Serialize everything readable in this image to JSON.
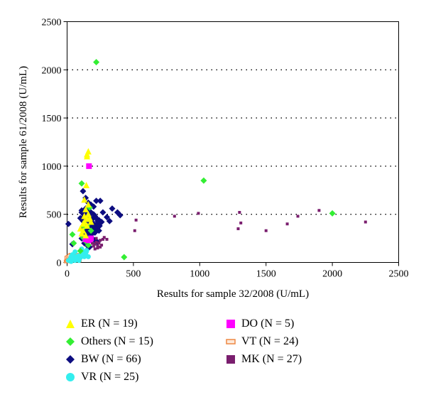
{
  "chart_data": {
    "type": "scatter",
    "title": "",
    "xlabel": "Results for sample 32/2008 (U/mL)",
    "ylabel": "Results for sample 61/2008 (U/mL)",
    "xlim": [
      0,
      2500
    ],
    "ylim": [
      0,
      2500
    ],
    "x_ticks": [
      "0",
      "500",
      "1000",
      "1500",
      "2000",
      "2500"
    ],
    "y_ticks": [
      "0",
      "500",
      "1000",
      "1500",
      "2000",
      "2500"
    ],
    "gridlines": "horizontal dotted",
    "legend_position": "bottom",
    "series": [
      {
        "name": "ER",
        "legend_label": "ER (N = 19)",
        "color": "#ffff00",
        "marker": "triangle",
        "points": [
          [
            150,
            1100
          ],
          [
            160,
            1150
          ],
          [
            150,
            1120
          ],
          [
            145,
            800
          ],
          [
            130,
            650
          ],
          [
            120,
            400
          ],
          [
            140,
            550
          ],
          [
            150,
            450
          ],
          [
            110,
            300
          ],
          [
            160,
            600
          ],
          [
            130,
            420
          ],
          [
            150,
            380
          ],
          [
            120,
            330
          ],
          [
            140,
            280
          ],
          [
            160,
            500
          ],
          [
            170,
            460
          ],
          [
            180,
            420
          ],
          [
            100,
            350
          ],
          [
            130,
            480
          ]
        ]
      },
      {
        "name": "Others",
        "legend_label": "Others (N = 15)",
        "color": "#33ee33",
        "marker": "diamond",
        "points": [
          [
            220,
            2080
          ],
          [
            1030,
            850
          ],
          [
            2000,
            510
          ],
          [
            430,
            55
          ],
          [
            110,
            820
          ],
          [
            170,
            570
          ],
          [
            150,
            380
          ],
          [
            130,
            370
          ],
          [
            40,
            290
          ],
          [
            50,
            200
          ],
          [
            140,
            220
          ],
          [
            120,
            260
          ],
          [
            160,
            180
          ],
          [
            100,
            120
          ],
          [
            180,
            330
          ]
        ]
      },
      {
        "name": "BW",
        "legend_label": "BW (N = 66)",
        "color": "#0d0d80",
        "marker": "diamond",
        "points": [
          [
            10,
            400
          ],
          [
            40,
            190
          ],
          [
            120,
            740
          ],
          [
            140,
            670
          ],
          [
            160,
            620
          ],
          [
            180,
            600
          ],
          [
            200,
            580
          ],
          [
            220,
            640
          ],
          [
            250,
            640
          ],
          [
            270,
            520
          ],
          [
            300,
            470
          ],
          [
            320,
            430
          ],
          [
            340,
            560
          ],
          [
            380,
            520
          ],
          [
            400,
            490
          ],
          [
            110,
            520
          ],
          [
            130,
            490
          ],
          [
            150,
            510
          ],
          [
            170,
            470
          ],
          [
            190,
            450
          ],
          [
            210,
            480
          ],
          [
            230,
            430
          ],
          [
            250,
            410
          ],
          [
            120,
            430
          ],
          [
            140,
            400
          ],
          [
            160,
            360
          ],
          [
            180,
            380
          ],
          [
            200,
            400
          ],
          [
            220,
            350
          ],
          [
            240,
            330
          ],
          [
            130,
            310
          ],
          [
            150,
            290
          ],
          [
            170,
            270
          ],
          [
            190,
            250
          ],
          [
            210,
            230
          ],
          [
            230,
            210
          ],
          [
            110,
            250
          ],
          [
            130,
            200
          ],
          [
            150,
            180
          ],
          [
            170,
            160
          ],
          [
            190,
            300
          ],
          [
            210,
            310
          ],
          [
            110,
            540
          ],
          [
            140,
            560
          ],
          [
            160,
            540
          ],
          [
            180,
            520
          ],
          [
            200,
            500
          ],
          [
            220,
            460
          ],
          [
            240,
            440
          ],
          [
            260,
            420
          ],
          [
            120,
            360
          ],
          [
            135,
            330
          ],
          [
            155,
            300
          ],
          [
            175,
            320
          ],
          [
            195,
            340
          ],
          [
            215,
            370
          ],
          [
            100,
            460
          ],
          [
            125,
            470
          ],
          [
            145,
            430
          ],
          [
            165,
            410
          ],
          [
            185,
            420
          ],
          [
            205,
            390
          ],
          [
            225,
            400
          ],
          [
            245,
            380
          ],
          [
            130,
            390
          ],
          [
            170,
            500
          ]
        ]
      },
      {
        "name": "VR",
        "legend_label": "VR (N = 25)",
        "color": "#33eeee",
        "marker": "circle",
        "points": [
          [
            10,
            20
          ],
          [
            20,
            30
          ],
          [
            30,
            10
          ],
          [
            40,
            50
          ],
          [
            50,
            40
          ],
          [
            60,
            20
          ],
          [
            70,
            60
          ],
          [
            80,
            30
          ],
          [
            90,
            70
          ],
          [
            100,
            50
          ],
          [
            110,
            80
          ],
          [
            120,
            100
          ],
          [
            130,
            110
          ],
          [
            140,
            90
          ],
          [
            150,
            130
          ],
          [
            160,
            60
          ],
          [
            40,
            80
          ],
          [
            60,
            110
          ],
          [
            110,
            140
          ],
          [
            130,
            60
          ],
          [
            145,
            110
          ],
          [
            30,
            60
          ],
          [
            70,
            40
          ],
          [
            90,
            20
          ],
          [
            115,
            70
          ]
        ]
      },
      {
        "name": "DO",
        "legend_label": "DO (N = 5)",
        "color": "#ff00ff",
        "marker": "square",
        "points": [
          [
            165,
            1000
          ],
          [
            140,
            240
          ],
          [
            160,
            230
          ],
          [
            170,
            240
          ],
          [
            180,
            250
          ]
        ]
      },
      {
        "name": "VT",
        "legend_label": "VT (N = 24)",
        "color": "#ee8844",
        "marker": "open-rect",
        "points": [
          [
            5,
            10
          ],
          [
            10,
            20
          ],
          [
            15,
            30
          ],
          [
            20,
            40
          ],
          [
            25,
            50
          ],
          [
            30,
            60
          ],
          [
            35,
            70
          ],
          [
            40,
            80
          ],
          [
            45,
            50
          ],
          [
            50,
            30
          ],
          [
            55,
            20
          ],
          [
            60,
            40
          ],
          [
            65,
            60
          ],
          [
            70,
            80
          ],
          [
            75,
            30
          ],
          [
            80,
            20
          ],
          [
            10,
            50
          ],
          [
            20,
            60
          ],
          [
            30,
            70
          ],
          [
            40,
            30
          ],
          [
            50,
            70
          ],
          [
            60,
            50
          ],
          [
            70,
            40
          ],
          [
            15,
            15
          ]
        ]
      },
      {
        "name": "MK",
        "legend_label": "MK (N = 27)",
        "color": "#7a1e6e",
        "marker": "small-square",
        "points": [
          [
            520,
            440
          ],
          [
            510,
            330
          ],
          [
            810,
            480
          ],
          [
            990,
            510
          ],
          [
            1300,
            520
          ],
          [
            1310,
            410
          ],
          [
            1290,
            350
          ],
          [
            1500,
            330
          ],
          [
            1660,
            400
          ],
          [
            1740,
            480
          ],
          [
            1900,
            540
          ],
          [
            2250,
            420
          ],
          [
            250,
            230
          ],
          [
            240,
            200
          ],
          [
            230,
            170
          ],
          [
            260,
            180
          ],
          [
            220,
            210
          ],
          [
            210,
            190
          ],
          [
            270,
            240
          ],
          [
            200,
            170
          ],
          [
            190,
            200
          ],
          [
            280,
            260
          ],
          [
            300,
            240
          ],
          [
            230,
            150
          ],
          [
            210,
            140
          ],
          [
            250,
            160
          ],
          [
            220,
            250
          ]
        ]
      }
    ]
  }
}
